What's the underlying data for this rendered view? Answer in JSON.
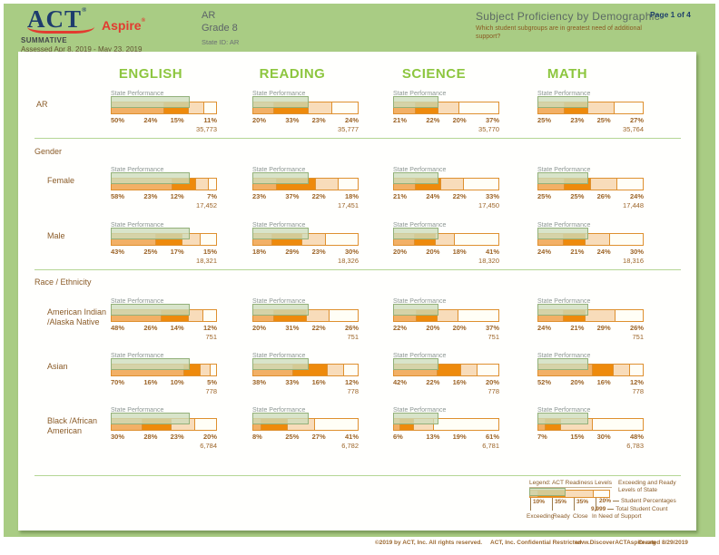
{
  "header": {
    "logo_act": "ACT",
    "logo_reg": "®",
    "logo_aspire": "Aspire",
    "program": "SUMMATIVE",
    "assessed": "Assessed Apr 8, 2019 - May 23, 2019",
    "org": "AR",
    "grade": "Grade 8",
    "state_id": "State ID: AR",
    "title": "Subject Proficiency by Demographic",
    "subtitle": "Which student subgroups are in greatest need of additional support?",
    "page": "Page 1 of 4"
  },
  "subjects": [
    "ENGLISH",
    "READING",
    "SCIENCE",
    "MATH"
  ],
  "labels": {
    "state_performance": "State Performance"
  },
  "report": {
    "state_exceeding_ready_pct": [
      74,
      53,
      43,
      48
    ]
  },
  "sections": [
    {
      "heading": "",
      "rows": [
        {
          "label": "AR",
          "cells": [
            {
              "values": [
                "50%",
                "24%",
                "15%",
                "11%"
              ],
              "count": "35,773"
            },
            {
              "values": [
                "20%",
                "33%",
                "23%",
                "24%"
              ],
              "count": "35,777"
            },
            {
              "values": [
                "21%",
                "22%",
                "20%",
                "37%"
              ],
              "count": "35,770"
            },
            {
              "values": [
                "25%",
                "23%",
                "25%",
                "27%"
              ],
              "count": "35,764"
            }
          ]
        }
      ]
    },
    {
      "heading": "Gender",
      "rows": [
        {
          "label": "Female",
          "cells": [
            {
              "values": [
                "58%",
                "23%",
                "12%",
                "7%"
              ],
              "count": "17,452"
            },
            {
              "values": [
                "23%",
                "37%",
                "22%",
                "18%"
              ],
              "count": "17,451"
            },
            {
              "values": [
                "21%",
                "24%",
                "22%",
                "33%"
              ],
              "count": "17,450"
            },
            {
              "values": [
                "25%",
                "25%",
                "26%",
                "24%"
              ],
              "count": "17,448"
            }
          ]
        },
        {
          "label": "Male",
          "cells": [
            {
              "values": [
                "43%",
                "25%",
                "17%",
                "15%"
              ],
              "count": "18,321"
            },
            {
              "values": [
                "18%",
                "29%",
                "23%",
                "30%"
              ],
              "count": "18,326"
            },
            {
              "values": [
                "20%",
                "20%",
                "18%",
                "41%"
              ],
              "count": "18,320"
            },
            {
              "values": [
                "24%",
                "21%",
                "24%",
                "30%"
              ],
              "count": "18,316"
            }
          ]
        }
      ]
    },
    {
      "heading": "Race / Ethnicity",
      "rows": [
        {
          "label": "American Indian /Alaska Native",
          "cells": [
            {
              "values": [
                "48%",
                "26%",
                "14%",
                "12%"
              ],
              "count": "751"
            },
            {
              "values": [
                "20%",
                "31%",
                "22%",
                "26%"
              ],
              "count": "751"
            },
            {
              "values": [
                "22%",
                "20%",
                "20%",
                "37%"
              ],
              "count": "751"
            },
            {
              "values": [
                "24%",
                "21%",
                "29%",
                "26%"
              ],
              "count": "751"
            }
          ]
        },
        {
          "label": "Asian",
          "cells": [
            {
              "values": [
                "70%",
                "16%",
                "10%",
                "5%"
              ],
              "count": "778"
            },
            {
              "values": [
                "38%",
                "33%",
                "16%",
                "12%"
              ],
              "count": "778"
            },
            {
              "values": [
                "42%",
                "22%",
                "16%",
                "20%"
              ],
              "count": "778"
            },
            {
              "values": [
                "52%",
                "20%",
                "16%",
                "12%"
              ],
              "count": "778"
            }
          ]
        },
        {
          "label": "Black /African American",
          "cells": [
            {
              "values": [
                "30%",
                "28%",
                "23%",
                "20%"
              ],
              "count": "6,784"
            },
            {
              "values": [
                "8%",
                "25%",
                "27%",
                "41%"
              ],
              "count": "6,782"
            },
            {
              "values": [
                "6%",
                "13%",
                "19%",
                "61%"
              ],
              "count": "6,781"
            },
            {
              "values": [
                "7%",
                "15%",
                "30%",
                "48%"
              ],
              "count": "6,783"
            }
          ]
        }
      ]
    }
  ],
  "legend": {
    "title": "Legend: ACT Readiness Levels",
    "levels": [
      "Exceeding",
      "Ready",
      "Close",
      "In Need of Support"
    ],
    "sample_percentages": [
      10,
      35,
      35,
      20
    ],
    "sample_labels": [
      "10%",
      "35%",
      "35%"
    ],
    "overlay_label": "Exceeding and Ready Levels of State",
    "overlay_pct": 45,
    "student_pct_sample": "20%",
    "student_pct_label": "Student Percentages",
    "count_sample": "9,999",
    "count_label": "Total Student Count"
  },
  "footer": {
    "items": [
      "©2019 by ACT, Inc. All rights reserved.",
      "ACT, Inc. Confidential Restricted",
      "www.DiscoverACTAspire.org",
      "Created 8/29/2019"
    ]
  },
  "colors": {
    "page_green": "#a9cc84",
    "accent_green": "#8dc63f",
    "brown_text": "#96622d",
    "bar_border": "#de902f",
    "level_exceeding": "#f2b066",
    "level_ready": "#ee8a0c",
    "level_close": "#f8dcba",
    "level_in_need_of_support": "#fffef6",
    "state_overlay_fill": "#cdddbb",
    "state_overlay_border": "#93b17a",
    "navy": "#1d3c6d",
    "red": "#e23b30"
  },
  "chart_data": {
    "type": "bar",
    "stacked": true,
    "orientation": "horizontal",
    "value_unit": "percent",
    "levels": [
      "Exceeding",
      "Ready",
      "Close",
      "In Need of Support"
    ],
    "subjects": [
      "ENGLISH",
      "READING",
      "SCIENCE",
      "MATH"
    ],
    "state_exceeding_ready_pct": {
      "ENGLISH": 74,
      "READING": 53,
      "SCIENCE": 43,
      "MATH": 48
    },
    "rows": [
      {
        "group": "AR",
        "section": null,
        "ENGLISH": {
          "values": [
            50,
            24,
            15,
            11
          ],
          "count": 35773
        },
        "READING": {
          "values": [
            20,
            33,
            23,
            24
          ],
          "count": 35777
        },
        "SCIENCE": {
          "values": [
            21,
            22,
            20,
            37
          ],
          "count": 35770
        },
        "MATH": {
          "values": [
            25,
            23,
            25,
            27
          ],
          "count": 35764
        }
      },
      {
        "group": "Female",
        "section": "Gender",
        "ENGLISH": {
          "values": [
            58,
            23,
            12,
            7
          ],
          "count": 17452
        },
        "READING": {
          "values": [
            23,
            37,
            22,
            18
          ],
          "count": 17451
        },
        "SCIENCE": {
          "values": [
            21,
            24,
            22,
            33
          ],
          "count": 17450
        },
        "MATH": {
          "values": [
            25,
            25,
            26,
            24
          ],
          "count": 17448
        }
      },
      {
        "group": "Male",
        "section": "Gender",
        "ENGLISH": {
          "values": [
            43,
            25,
            17,
            15
          ],
          "count": 18321
        },
        "READING": {
          "values": [
            18,
            29,
            23,
            30
          ],
          "count": 18326
        },
        "SCIENCE": {
          "values": [
            20,
            20,
            18,
            41
          ],
          "count": 18320
        },
        "MATH": {
          "values": [
            24,
            21,
            24,
            30
          ],
          "count": 18316
        }
      },
      {
        "group": "American Indian /Alaska Native",
        "section": "Race / Ethnicity",
        "ENGLISH": {
          "values": [
            48,
            26,
            14,
            12
          ],
          "count": 751
        },
        "READING": {
          "values": [
            20,
            31,
            22,
            26
          ],
          "count": 751
        },
        "SCIENCE": {
          "values": [
            22,
            20,
            20,
            37
          ],
          "count": 751
        },
        "MATH": {
          "values": [
            24,
            21,
            29,
            26
          ],
          "count": 751
        }
      },
      {
        "group": "Asian",
        "section": "Race / Ethnicity",
        "ENGLISH": {
          "values": [
            70,
            16,
            10,
            5
          ],
          "count": 778
        },
        "READING": {
          "values": [
            38,
            33,
            16,
            12
          ],
          "count": 778
        },
        "SCIENCE": {
          "values": [
            42,
            22,
            16,
            20
          ],
          "count": 778
        },
        "MATH": {
          "values": [
            52,
            20,
            16,
            12
          ],
          "count": 778
        }
      },
      {
        "group": "Black /African American",
        "section": "Race / Ethnicity",
        "ENGLISH": {
          "values": [
            30,
            28,
            23,
            20
          ],
          "count": 6784
        },
        "READING": {
          "values": [
            8,
            25,
            27,
            41
          ],
          "count": 6782
        },
        "SCIENCE": {
          "values": [
            6,
            13,
            19,
            61
          ],
          "count": 6781
        },
        "MATH": {
          "values": [
            7,
            15,
            30,
            48
          ],
          "count": 6783
        }
      }
    ]
  }
}
